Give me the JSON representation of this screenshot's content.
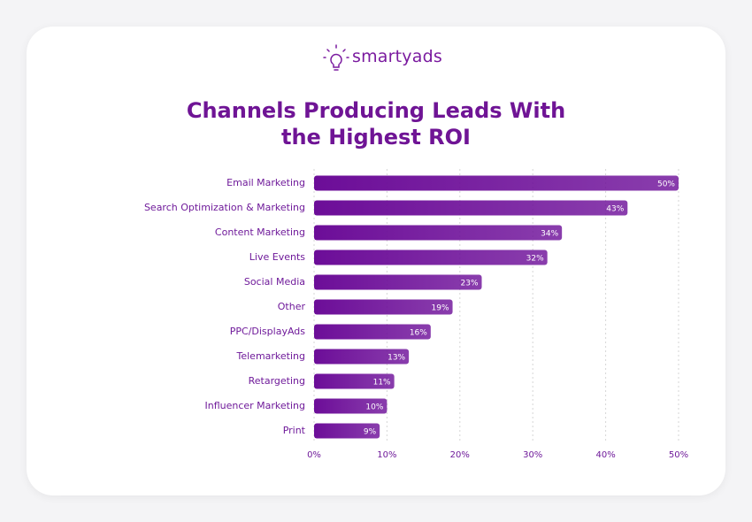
{
  "brand": "smartyads",
  "chart_data": {
    "type": "bar",
    "orientation": "horizontal",
    "title": "Channels Producing Leads With the Highest ROI",
    "categories": [
      "Email Marketing",
      "Search Optimization & Marketing",
      "Content Marketing",
      "Live Events",
      "Social Media",
      "Other",
      "PPC/DisplayAds",
      "Telemarketing",
      "Retargeting",
      "Influencer Marketing",
      "Print"
    ],
    "values": [
      50,
      43,
      34,
      32,
      23,
      19,
      16,
      13,
      11,
      10,
      9
    ],
    "value_labels": [
      "50%",
      "43%",
      "34%",
      "32%",
      "23%",
      "19%",
      "16%",
      "13%",
      "11%",
      "10%",
      "9%"
    ],
    "color": "#6c0d98",
    "xlim": [
      0,
      50
    ],
    "xticks": [
      {
        "value": 0,
        "label": "0%"
      },
      {
        "value": 10,
        "label": "10%"
      },
      {
        "value": 20,
        "label": "20%"
      },
      {
        "value": 30,
        "label": "30%"
      },
      {
        "value": 40,
        "label": "40%"
      },
      {
        "value": 50,
        "label": "50%"
      }
    ],
    "grid": true
  }
}
